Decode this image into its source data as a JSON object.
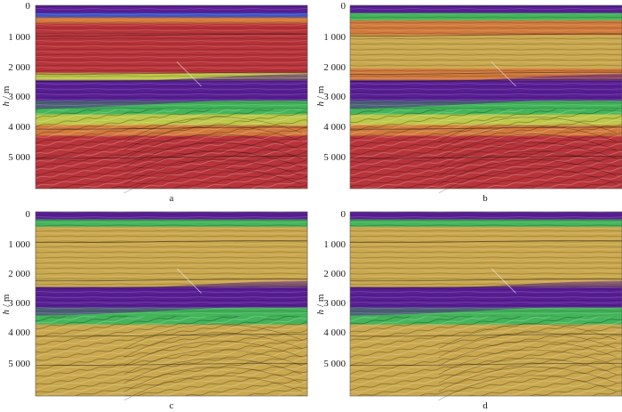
{
  "figure": {
    "axis_label_italic": "h",
    "axis_label_unit": "/ m",
    "depth_ticks": [
      "0",
      "1 000",
      "2 000",
      "3 000",
      "4 000",
      "5 000"
    ],
    "depth_tick_values": [
      0,
      1000,
      2000,
      3000,
      4000,
      5000
    ],
    "depth_range_m": [
      0,
      6000
    ],
    "colors": {
      "purple": "#5a1f96",
      "blue": "#3c53c8",
      "green": "#43b45a",
      "yellow_green": "#bfc84a",
      "gold": "#caa84e",
      "orange": "#d27a3c",
      "red": "#b8343a"
    },
    "panels": [
      {
        "label": "a",
        "scheme": "red",
        "velocity_layers_m": [
          {
            "top": 0,
            "color": "purple"
          },
          {
            "top": 280,
            "color": "blue"
          },
          {
            "top": 420,
            "color": "orange"
          },
          {
            "top": 620,
            "color": "red"
          },
          {
            "top": 2250,
            "color": "yellow_green"
          },
          {
            "top": 2480,
            "color": "purple"
          },
          {
            "top": 3150,
            "color": "green"
          },
          {
            "top": 3600,
            "color": "yellow_green"
          },
          {
            "top": 3950,
            "color": "orange"
          },
          {
            "top": 4300,
            "color": "red"
          }
        ]
      },
      {
        "label": "b",
        "scheme": "red",
        "velocity_layers_m": [
          {
            "top": 0,
            "color": "purple"
          },
          {
            "top": 280,
            "color": "green"
          },
          {
            "top": 520,
            "color": "orange"
          },
          {
            "top": 1000,
            "color": "gold"
          },
          {
            "top": 2100,
            "color": "orange"
          },
          {
            "top": 2480,
            "color": "purple"
          },
          {
            "top": 3150,
            "color": "green"
          },
          {
            "top": 3600,
            "color": "yellow_green"
          },
          {
            "top": 3950,
            "color": "orange"
          },
          {
            "top": 4300,
            "color": "red"
          }
        ]
      },
      {
        "label": "c",
        "scheme": "gold",
        "velocity_layers_m": [
          {
            "top": 0,
            "color": "purple"
          },
          {
            "top": 280,
            "color": "green"
          },
          {
            "top": 520,
            "color": "gold"
          },
          {
            "top": 2480,
            "color": "purple"
          },
          {
            "top": 3150,
            "color": "green"
          },
          {
            "top": 3700,
            "color": "gold"
          }
        ]
      },
      {
        "label": "d",
        "scheme": "gold",
        "velocity_layers_m": [
          {
            "top": 0,
            "color": "purple"
          },
          {
            "top": 280,
            "color": "green"
          },
          {
            "top": 520,
            "color": "gold"
          },
          {
            "top": 2480,
            "color": "purple"
          },
          {
            "top": 3150,
            "color": "green"
          },
          {
            "top": 3700,
            "color": "gold"
          }
        ]
      }
    ]
  }
}
